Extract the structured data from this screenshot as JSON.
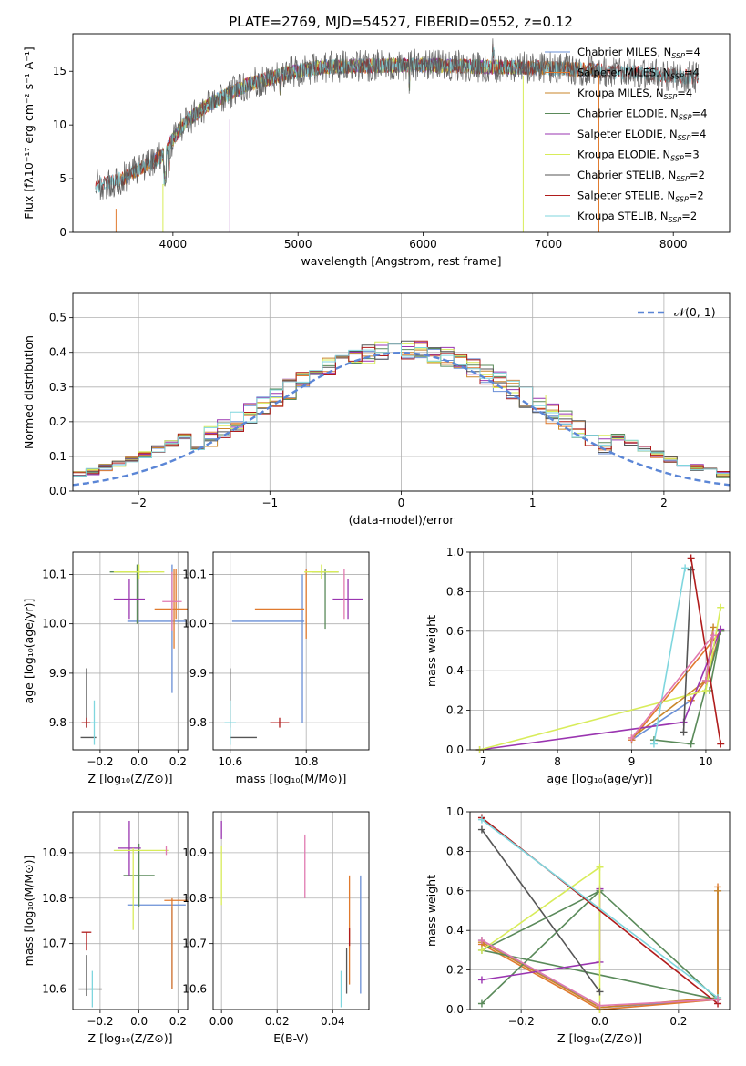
{
  "figure_title": "PLATE=2769, MJD=54527, FIBERID=0552, z=0.12",
  "colors": {
    "Chabrier MILES": "#6a8fd6",
    "Salpeter MILES": "#e07a2e",
    "Kroupa MILES": "#c9862a",
    "Chabrier ELODIE": "#5a8a5a",
    "Salpeter ELODIE": "#9a35b0",
    "Kroupa ELODIE": "#d8ec5a",
    "Chabrier STELIB": "#555555",
    "Salpeter STELIB": "#b01c1c",
    "Kroupa STELIB": "#7fd6de",
    "pink": "#e07ab0",
    "gauss": "#5b86d6"
  },
  "chart_data": [
    {
      "type": "line",
      "id": "spectrum",
      "title": "PLATE=2769, MJD=54527, FIBERID=0552, z=0.12",
      "xlabel": "wavelength [Angstrom, rest frame]",
      "ylabel": "Flux [fλ10⁻¹⁷ erg cm⁻² s⁻¹ A⁻¹]",
      "xlim": [
        3200,
        8450
      ],
      "ylim": [
        0,
        18.5
      ],
      "xticks": [
        4000,
        5000,
        6000,
        7000,
        8000
      ],
      "yticks": [
        0,
        5,
        10,
        15
      ],
      "grid": false,
      "legend_position": "top-right",
      "continuum_knots": {
        "x": [
          3380,
          3600,
          3900,
          4100,
          4300,
          4600,
          4900,
          5200,
          5500,
          6000,
          6500,
          7000,
          7500,
          8000,
          8200
        ],
        "y": [
          4.3,
          5.0,
          7.0,
          10.3,
          12.0,
          13.8,
          14.8,
          15.4,
          15.5,
          15.6,
          15.4,
          15.3,
          15.0,
          14.6,
          14.4
        ]
      },
      "legend": [
        {
          "label": "Chabrier MILES, N",
          "sub": "SSP",
          "suffix": "=4"
        },
        {
          "label": "Salpeter MILES, N",
          "sub": "SSP",
          "suffix": "=4"
        },
        {
          "label": "Kroupa MILES, N",
          "sub": "SSP",
          "suffix": "=4"
        },
        {
          "label": "Chabrier ELODIE, N",
          "sub": "SSP",
          "suffix": "=4"
        },
        {
          "label": "Salpeter ELODIE, N",
          "sub": "SSP",
          "suffix": "=4"
        },
        {
          "label": "Kroupa ELODIE, N",
          "sub": "SSP",
          "suffix": "=3"
        },
        {
          "label": "Chabrier STELIB, N",
          "sub": "SSP",
          "suffix": "=2"
        },
        {
          "label": "Salpeter STELIB, N",
          "sub": "SSP",
          "suffix": "=2"
        },
        {
          "label": "Kroupa STELIB, N",
          "sub": "SSP",
          "suffix": "=2"
        }
      ]
    },
    {
      "type": "bar",
      "id": "residuals",
      "xlabel": "(data-model)/error",
      "ylabel": "Normed distribution",
      "xlim": [
        -2.5,
        2.5
      ],
      "ylim": [
        0,
        0.57
      ],
      "xticks": [
        -2,
        -1,
        0,
        1,
        2
      ],
      "yticks": [
        0.0,
        0.1,
        0.2,
        0.3,
        0.4,
        0.5
      ],
      "grid": true,
      "legend_position": "top-right",
      "legend": [
        "𝒩(0, 1)"
      ],
      "bin_start": -2.6,
      "bin_width": 0.1,
      "gaussian": {
        "mu": 0,
        "sigma": 1
      }
    },
    {
      "type": "scatter",
      "id": "age-vs-metallicity",
      "xlabel": "Z [log₁₀(Z/Z⊙)]",
      "ylabel": "age  [log₁₀(age/yr)]",
      "xlim": [
        -0.34,
        0.25
      ],
      "ylim": [
        9.745,
        10.145
      ],
      "xticks": [
        -0.2,
        0.0,
        0.2
      ],
      "yticks": [
        9.8,
        9.9,
        10.0,
        10.1
      ],
      "grid": true,
      "errorbars": [
        {
          "series": "Chabrier MILES",
          "x": 0.09,
          "y": 10.005,
          "xerr": 0.15,
          "yerr": 0.0
        },
        {
          "series": "Chabrier MILES",
          "x": 0.17,
          "y": 9.99,
          "xerr": 0.0,
          "yerr": 0.13
        },
        {
          "series": "Salpeter MILES",
          "x": 0.18,
          "y": 10.03,
          "xerr": 0.1,
          "yerr": 0.08
        },
        {
          "series": "Chabrier ELODIE",
          "x": -0.05,
          "y": 10.105,
          "xerr": 0.1,
          "yerr": 0.0
        },
        {
          "series": "Chabrier ELODIE",
          "x": -0.01,
          "y": 10.06,
          "xerr": 0.0,
          "yerr": 0.06
        },
        {
          "series": "Salpeter ELODIE",
          "x": -0.05,
          "y": 10.05,
          "xerr": 0.08,
          "yerr": 0.04
        },
        {
          "series": "Kroupa ELODIE",
          "x": 0.0,
          "y": 10.105,
          "xerr": 0.13,
          "yerr": 0.015
        },
        {
          "series": "Salpeter MILES",
          "x": 0.19,
          "y": 10.06,
          "xerr": 0.0,
          "yerr": 0.05
        },
        {
          "series": "Chabrier STELIB",
          "x": -0.26,
          "y": 9.77,
          "xerr": 0.04,
          "yerr": 0.0
        },
        {
          "series": "Chabrier STELIB",
          "x": -0.27,
          "y": 9.85,
          "xerr": 0.0,
          "yerr": 0.06
        },
        {
          "series": "Salpeter STELIB",
          "x": -0.27,
          "y": 9.8,
          "xerr": 0.025,
          "yerr": 0.01
        },
        {
          "series": "Kroupa STELIB",
          "x": -0.23,
          "y": 9.8,
          "xerr": 0.02,
          "yerr": 0.045
        },
        {
          "series": "pink",
          "x": 0.17,
          "y": 10.045,
          "xerr": 0.05,
          "yerr": 0.06
        }
      ]
    },
    {
      "type": "scatter",
      "id": "age-vs-mass",
      "xlabel": "mass [log₁₀(M/M⊙)]",
      "ylabel": "",
      "xlim": [
        10.555,
        10.965
      ],
      "ylim": [
        9.745,
        10.145
      ],
      "xticks": [
        10.6,
        10.8
      ],
      "yticks": [
        9.8,
        9.9,
        10.0,
        10.1
      ],
      "grid": true,
      "errorbars": [
        {
          "series": "Chabrier MILES",
          "x": 10.7,
          "y": 10.005,
          "xerr": 0.095,
          "yerr": 0.0
        },
        {
          "series": "Chabrier MILES",
          "x": 10.79,
          "y": 9.95,
          "xerr": 0.0,
          "yerr": 0.15
        },
        {
          "series": "Salpeter MILES",
          "x": 10.73,
          "y": 10.03,
          "xerr": 0.065,
          "yerr": 0.0
        },
        {
          "series": "Salpeter MILES",
          "x": 10.8,
          "y": 10.04,
          "xerr": 0.0,
          "yerr": 0.07
        },
        {
          "series": "Chabrier ELODIE",
          "x": 10.85,
          "y": 10.105,
          "xerr": 0.035,
          "yerr": 0.0
        },
        {
          "series": "Chabrier ELODIE",
          "x": 10.85,
          "y": 10.05,
          "xerr": 0.0,
          "yerr": 0.06
        },
        {
          "series": "Salpeter ELODIE",
          "x": 10.91,
          "y": 10.05,
          "xerr": 0.04,
          "yerr": 0.04
        },
        {
          "series": "Kroupa ELODIE",
          "x": 10.84,
          "y": 10.105,
          "xerr": 0.045,
          "yerr": 0.015
        },
        {
          "series": "pink",
          "x": 10.9,
          "y": 10.06,
          "xerr": 0.0,
          "yerr": 0.05
        },
        {
          "series": "Chabrier STELIB",
          "x": 10.635,
          "y": 9.77,
          "xerr": 0.035,
          "yerr": 0.0
        },
        {
          "series": "Chabrier STELIB",
          "x": 10.6,
          "y": 9.85,
          "xerr": 0.0,
          "yerr": 0.06
        },
        {
          "series": "Salpeter STELIB",
          "x": 10.73,
          "y": 9.8,
          "xerr": 0.025,
          "yerr": 0.01
        },
        {
          "series": "Kroupa STELIB",
          "x": 10.6,
          "y": 9.8,
          "xerr": 0.015,
          "yerr": 0.045
        }
      ]
    },
    {
      "type": "line",
      "id": "mass-weight-vs-age",
      "xlabel": "age  [log₁₀(age/yr)]",
      "ylabel": "mass weight",
      "xlim": [
        6.82,
        10.32
      ],
      "ylim": [
        0.0,
        1.0
      ],
      "xticks": [
        7,
        8,
        9,
        10
      ],
      "yticks": [
        0.0,
        0.2,
        0.4,
        0.6,
        0.8,
        1.0
      ],
      "grid": true,
      "series": [
        {
          "name": "Chabrier MILES",
          "x": [
            9.0,
            9.8,
            10.0,
            10.2
          ],
          "y": [
            0.05,
            0.25,
            0.35,
            0.6
          ]
        },
        {
          "name": "Salpeter MILES",
          "x": [
            9.0,
            10.2,
            10.0,
            9.8
          ],
          "y": [
            0.05,
            0.6,
            0.35,
            0.25
          ]
        },
        {
          "name": "Kroupa MILES",
          "x": [
            9.0,
            10.0,
            10.1
          ],
          "y": [
            0.06,
            0.35,
            0.62
          ]
        },
        {
          "name": "Chabrier ELODIE",
          "x": [
            9.3,
            9.8,
            10.2,
            10.05
          ],
          "y": [
            0.05,
            0.03,
            0.6,
            0.3
          ]
        },
        {
          "name": "Salpeter ELODIE",
          "x": [
            6.95,
            9.7,
            10.2
          ],
          "y": [
            0.0,
            0.14,
            0.61
          ]
        },
        {
          "name": "Kroupa ELODIE",
          "x": [
            6.95,
            10.0,
            10.2
          ],
          "y": [
            0.0,
            0.3,
            0.72
          ]
        },
        {
          "name": "Chabrier STELIB",
          "x": [
            9.7,
            9.8
          ],
          "y": [
            0.09,
            0.91
          ]
        },
        {
          "name": "Salpeter STELIB",
          "x": [
            9.8,
            10.2
          ],
          "y": [
            0.97,
            0.03
          ]
        },
        {
          "name": "Kroupa STELIB",
          "x": [
            9.3,
            9.72
          ],
          "y": [
            0.03,
            0.92
          ]
        },
        {
          "name": "pink",
          "x": [
            9.0,
            10.1,
            10.0
          ],
          "y": [
            0.06,
            0.58,
            0.35
          ]
        }
      ]
    },
    {
      "type": "scatter",
      "id": "mass-vs-metallicity",
      "xlabel": "Z [log₁₀(Z/Z⊙)]",
      "ylabel": "mass [log₁₀(M/M⊙)]",
      "xlim": [
        -0.34,
        0.25
      ],
      "ylim": [
        10.555,
        10.99
      ],
      "xticks": [
        -0.2,
        0.0,
        0.2
      ],
      "yticks": [
        10.6,
        10.7,
        10.8,
        10.9
      ],
      "grid": true,
      "errorbars": [
        {
          "series": "Chabrier MILES",
          "x": 0.09,
          "y": 10.785,
          "xerr": 0.15,
          "yerr": 0.0
        },
        {
          "series": "Chabrier MILES",
          "x": 0.17,
          "y": 10.69,
          "xerr": 0.0,
          "yerr": 0.09
        },
        {
          "series": "Salpeter MILES",
          "x": 0.19,
          "y": 10.795,
          "xerr": 0.06,
          "yerr": 0.0
        },
        {
          "series": "Salpeter MILES",
          "x": 0.17,
          "y": 10.7,
          "xerr": 0.0,
          "yerr": 0.1
        },
        {
          "series": "Chabrier ELODIE",
          "x": 0.0,
          "y": 10.85,
          "xerr": 0.08,
          "yerr": 0.07
        },
        {
          "series": "Salpeter ELODIE",
          "x": -0.05,
          "y": 10.91,
          "xerr": 0.06,
          "yerr": 0.06
        },
        {
          "series": "Kroupa ELODIE",
          "x": 0.01,
          "y": 10.905,
          "xerr": 0.14,
          "yerr": 0.0
        },
        {
          "series": "Kroupa ELODIE",
          "x": -0.03,
          "y": 10.82,
          "xerr": 0.0,
          "yerr": 0.09
        },
        {
          "series": "pink",
          "x": 0.14,
          "y": 10.905,
          "xerr": 0.0,
          "yerr": 0.01
        },
        {
          "series": "Chabrier STELIB",
          "x": -0.25,
          "y": 10.6,
          "xerr": 0.06,
          "yerr": 0.0
        },
        {
          "series": "Chabrier STELIB",
          "x": -0.27,
          "y": 10.63,
          "xerr": 0.0,
          "yerr": 0.045
        },
        {
          "series": "Salpeter STELIB",
          "x": -0.27,
          "y": 10.725,
          "xerr": 0.025,
          "yerr": 0.0
        },
        {
          "series": "Salpeter STELIB",
          "x": -0.27,
          "y": 10.705,
          "xerr": 0.0,
          "yerr": 0.02
        },
        {
          "series": "Kroupa STELIB",
          "x": -0.24,
          "y": 10.6,
          "xerr": 0.02,
          "yerr": 0.04
        }
      ]
    },
    {
      "type": "scatter",
      "id": "mass-vs-extinction",
      "xlabel": "E(B-V)",
      "ylabel": "",
      "xlim": [
        -0.003,
        0.053
      ],
      "ylim": [
        10.555,
        10.99
      ],
      "xticks": [
        0.0,
        0.02,
        0.04
      ],
      "yticks": [
        10.6,
        10.7,
        10.8,
        10.9
      ],
      "grid": true,
      "errorbars": [
        {
          "series": "Salpeter ELODIE",
          "x": 0.0,
          "y": 10.95,
          "xerr": 0.0,
          "yerr": 0.02
        },
        {
          "series": "Kroupa ELODIE",
          "x": 0.0,
          "y": 10.85,
          "xerr": 0.0,
          "yerr": 0.065
        },
        {
          "series": "pink",
          "x": 0.03,
          "y": 10.87,
          "xerr": 0.0,
          "yerr": 0.07
        },
        {
          "series": "Kroupa STELIB",
          "x": 0.043,
          "y": 10.6,
          "xerr": 0.0,
          "yerr": 0.04
        },
        {
          "series": "Chabrier STELIB",
          "x": 0.045,
          "y": 10.64,
          "xerr": 0.0,
          "yerr": 0.05
        },
        {
          "series": "Salpeter MILES",
          "x": 0.046,
          "y": 10.73,
          "xerr": 0.0,
          "yerr": 0.12
        },
        {
          "series": "Salpeter STELIB",
          "x": 0.046,
          "y": 10.715,
          "xerr": 0.0,
          "yerr": 0.02
        },
        {
          "series": "Chabrier MILES",
          "x": 0.05,
          "y": 10.72,
          "xerr": 0.0,
          "yerr": 0.13
        }
      ]
    },
    {
      "type": "line",
      "id": "mass-weight-vs-metallicity",
      "xlabel": "Z [log₁₀(Z/Z⊙)]",
      "ylabel": "mass weight",
      "xlim": [
        -0.33,
        0.33
      ],
      "ylim": [
        0.0,
        1.0
      ],
      "xticks": [
        -0.2,
        0.0,
        0.2
      ],
      "yticks": [
        0.0,
        0.2,
        0.4,
        0.6,
        0.8,
        1.0
      ],
      "grid": true,
      "series": [
        {
          "name": "Chabrier MILES",
          "x": [
            -0.3,
            0.0,
            0.3,
            0.3
          ],
          "y": [
            0.35,
            0.01,
            0.05,
            0.6
          ]
        },
        {
          "name": "Salpeter MILES",
          "x": [
            -0.3,
            0.0,
            0.3,
            0.3
          ],
          "y": [
            0.33,
            0.0,
            0.05,
            0.62
          ]
        },
        {
          "name": "Kroupa MILES",
          "x": [
            -0.3,
            0.0,
            0.3,
            0.3
          ],
          "y": [
            0.34,
            0.01,
            0.06,
            0.6
          ]
        },
        {
          "name": "Chabrier ELODIE",
          "x": [
            -0.3,
            0.0,
            0.3,
            -0.3,
            0.0
          ],
          "y": [
            0.03,
            0.6,
            0.05,
            0.3,
            0.6
          ]
        },
        {
          "name": "Salpeter ELODIE",
          "x": [
            -0.3,
            0.0,
            0.0
          ],
          "y": [
            0.15,
            0.24,
            0.61
          ]
        },
        {
          "name": "Kroupa ELODIE",
          "x": [
            -0.3,
            0.0,
            0.0
          ],
          "y": [
            0.3,
            0.72,
            0.0
          ]
        },
        {
          "name": "Chabrier STELIB",
          "x": [
            -0.3,
            0.0
          ],
          "y": [
            0.91,
            0.09
          ]
        },
        {
          "name": "Salpeter STELIB",
          "x": [
            -0.3,
            0.3
          ],
          "y": [
            0.97,
            0.03
          ]
        },
        {
          "name": "Kroupa STELIB",
          "x": [
            -0.3,
            0.3
          ],
          "y": [
            0.96,
            0.06
          ]
        },
        {
          "name": "pink",
          "x": [
            -0.3,
            0.0,
            0.3
          ],
          "y": [
            0.35,
            0.02,
            0.05
          ]
        }
      ]
    }
  ]
}
